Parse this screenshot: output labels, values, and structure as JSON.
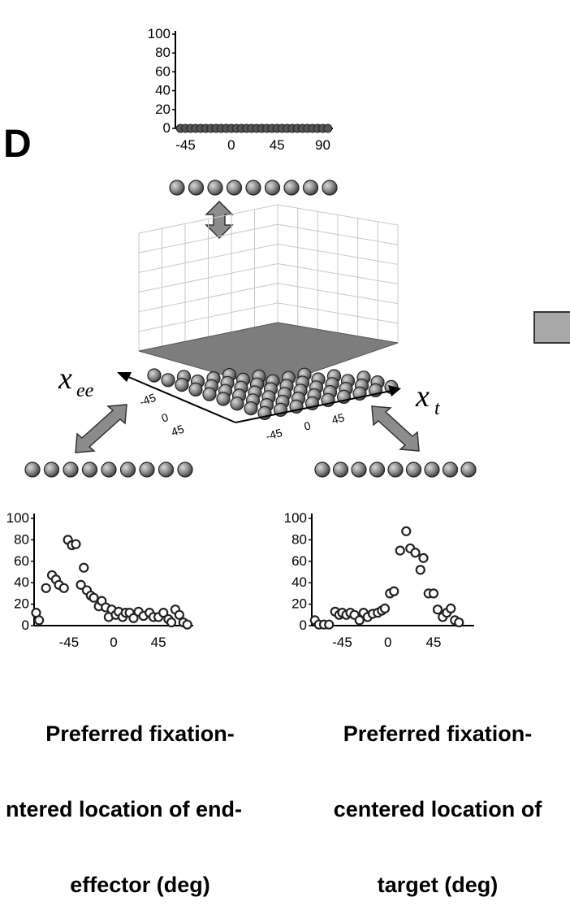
{
  "panel_label": "D",
  "axis_labels": {
    "x_ee": "x",
    "x_ee_sub": "ee",
    "x_t": "x",
    "x_t_sub": "t"
  },
  "captions": {
    "left": [
      "Preferred fixation-",
      "ntered location of end-",
      "effector (deg)"
    ],
    "right": [
      "Preferred fixation-",
      "centered location of",
      "target (deg)"
    ]
  },
  "colors": {
    "node_fill": "#8a8a8a",
    "surface_fill": "#7d7d7d",
    "arrow_fill": "#8c8c8c",
    "grid": "#c8c8c8"
  },
  "chart_data": [
    {
      "id": "top",
      "type": "scatter",
      "yticks": [
        "0",
        "20",
        "40",
        "60",
        "80",
        "100"
      ],
      "xticks": [
        "-45",
        "0",
        "45",
        "90"
      ],
      "ylim": [
        0,
        100
      ],
      "xlim": [
        -55,
        100
      ],
      "x": [
        -50,
        -45,
        -40,
        -35,
        -30,
        -25,
        -20,
        -15,
        -10,
        -5,
        0,
        5,
        10,
        15,
        20,
        25,
        30,
        35,
        40,
        45,
        50,
        55,
        60,
        65,
        70,
        75,
        80,
        85,
        90,
        95
      ],
      "y": [
        0,
        0,
        0,
        0,
        0,
        0,
        0,
        0,
        0,
        0,
        0,
        0,
        0,
        0,
        0,
        0,
        0,
        0,
        0,
        0,
        0,
        0,
        0,
        0,
        0,
        0,
        0,
        0,
        0,
        0
      ]
    },
    {
      "id": "bottom-left",
      "type": "scatter",
      "yticks": [
        "0",
        "20",
        "40",
        "60",
        "80",
        "100"
      ],
      "xticks": [
        "-45",
        "0",
        "45"
      ],
      "ylim": [
        0,
        100
      ],
      "xlim": [
        -80,
        80
      ],
      "x": [
        -78,
        -75,
        -68,
        -62,
        -58,
        -55,
        -50,
        -46,
        -42,
        -38,
        -33,
        -30,
        -27,
        -23,
        -20,
        -15,
        -12,
        -8,
        -5,
        -2,
        2,
        5,
        9,
        12,
        16,
        20,
        25,
        30,
        36,
        40,
        45,
        50,
        55,
        58,
        62,
        66,
        70,
        74
      ],
      "y": [
        12,
        5,
        35,
        47,
        43,
        38,
        35,
        80,
        75,
        76,
        38,
        54,
        33,
        28,
        26,
        18,
        23,
        17,
        8,
        15,
        10,
        13,
        8,
        12,
        12,
        7,
        13,
        9,
        12,
        8,
        8,
        12,
        6,
        3,
        15,
        10,
        3,
        1
      ]
    },
    {
      "id": "bottom-right",
      "type": "scatter",
      "yticks": [
        "0",
        "20",
        "40",
        "60",
        "80",
        "100"
      ],
      "xticks": [
        "-45",
        "0",
        "45"
      ],
      "ylim": [
        0,
        100
      ],
      "xlim": [
        -75,
        85
      ],
      "x": [
        -72,
        -68,
        -63,
        -58,
        -52,
        -48,
        -45,
        -41,
        -37,
        -33,
        -28,
        -24,
        -20,
        -15,
        -10,
        -6,
        -3,
        2,
        6,
        12,
        18,
        22,
        27,
        32,
        35,
        40,
        45,
        49,
        54,
        58,
        62,
        66,
        70
      ],
      "y": [
        5,
        1,
        1,
        1,
        13,
        10,
        12,
        10,
        12,
        10,
        5,
        12,
        8,
        11,
        12,
        14,
        16,
        30,
        32,
        70,
        88,
        72,
        68,
        52,
        63,
        30,
        30,
        15,
        8,
        12,
        16,
        5,
        3
      ]
    }
  ],
  "grid3d_ticks": {
    "left": [
      "-45",
      "0",
      "45"
    ],
    "right": [
      "-45",
      "0",
      "45"
    ]
  }
}
